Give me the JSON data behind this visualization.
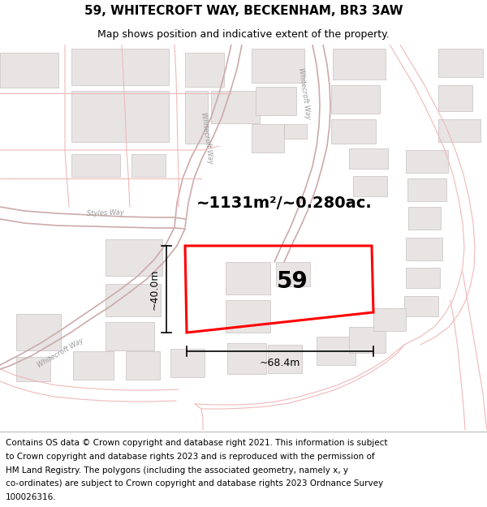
{
  "title": "59, WHITECROFT WAY, BECKENHAM, BR3 3AW",
  "subtitle": "Map shows position and indicative extent of the property.",
  "area_text": "~1131m²/~0.280ac.",
  "number_label": "59",
  "dim_width": "~68.4m",
  "dim_height": "~40.0m",
  "footer": "Contains OS data © Crown copyright and database right 2021. This information is subject to Crown copyright and database rights 2023 and is reproduced with the permission of HM Land Registry. The polygons (including the associated geometry, namely x, y co-ordinates) are subject to Crown copyright and database rights 2023 Ordnance Survey 100026316.",
  "map_bg": "#ffffff",
  "road_color": "#f0b8b8",
  "road_color2": "#ccaaaa",
  "building_face": "#e8e4e4",
  "building_edge": "#c8c0c0",
  "highlight_color": "#ff0000",
  "dim_color": "#000000",
  "title_fontsize": 11,
  "subtitle_fontsize": 9,
  "area_fontsize": 14,
  "label_fontsize": 20,
  "dim_fontsize": 9,
  "road_label_fontsize": 6,
  "footer_fontsize": 7.5,
  "road_lw": 0.8,
  "road_lw2": 1.2,
  "bld_lw": 0.5,
  "poly_lw": 2.2
}
